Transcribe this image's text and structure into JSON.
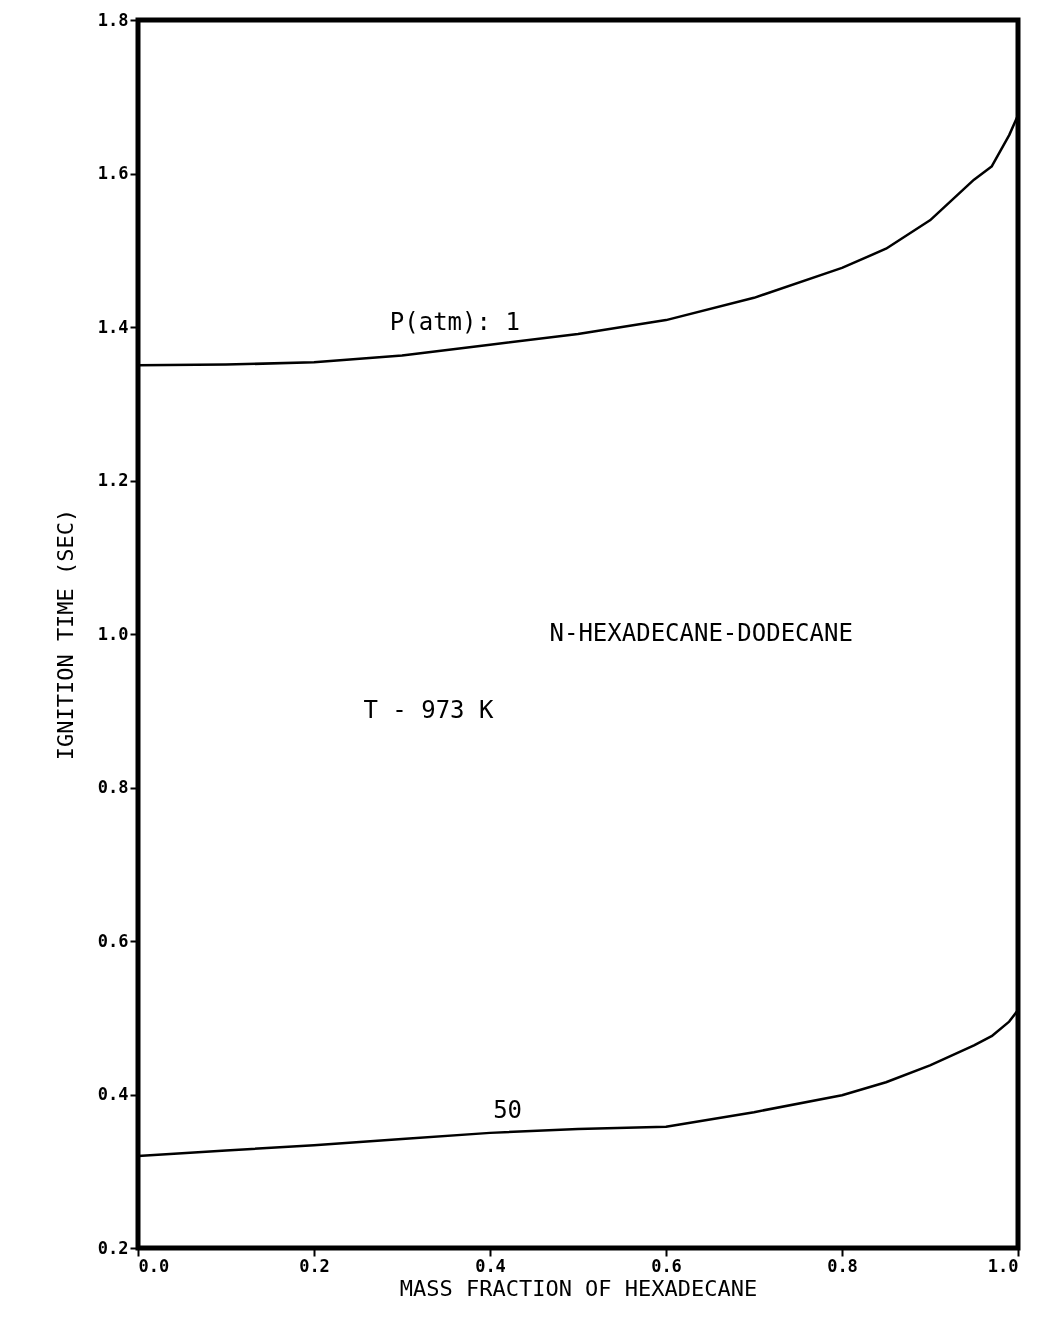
{
  "chart_data": {
    "type": "line",
    "xlabel": "MASS FRACTION OF HEXADECANE",
    "ylabel": "IGNITION TIME (SEC)",
    "annotations": [
      "N-HEXADECANE-DODECANE",
      "T - 973 K"
    ],
    "x": [
      0,
      0.1,
      0.2,
      0.3,
      0.4,
      0.5,
      0.6,
      0.7,
      0.8,
      0.85,
      0.9,
      0.95,
      0.97,
      0.99,
      1.0
    ],
    "series": [
      {
        "name": "P(atm): 1",
        "color": "#000000",
        "values": [
          1.35,
          1.351,
          1.354,
          1.363,
          1.377,
          1.391,
          1.409,
          1.438,
          1.477,
          1.502,
          1.539,
          1.592,
          1.609,
          1.65,
          1.676
        ]
      },
      {
        "name": "50",
        "color": "#000000",
        "values": [
          0.32,
          0.327,
          0.334,
          0.342,
          0.35,
          0.355,
          0.358,
          0.377,
          0.399,
          0.416,
          0.438,
          0.464,
          0.476,
          0.495,
          0.51
        ]
      }
    ],
    "xlim": [
      0,
      1
    ],
    "ylim": [
      0.2,
      1.8
    ],
    "xticks": [
      {
        "value": 0,
        "label": "0.0"
      },
      {
        "value": 0.2,
        "label": "0.2"
      },
      {
        "value": 0.4,
        "label": "0.4"
      },
      {
        "value": 0.6,
        "label": "0.6"
      },
      {
        "value": 0.8,
        "label": "0.8"
      },
      {
        "value": 1,
        "label": "1.0"
      }
    ],
    "yticks": [
      {
        "value": 0.2,
        "label": "0.2"
      },
      {
        "value": 0.4,
        "label": "0.4"
      },
      {
        "value": 0.6,
        "label": "0.6"
      },
      {
        "value": 0.8,
        "label": "0.8"
      },
      {
        "value": 1,
        "label": "1.0"
      },
      {
        "value": 1.2,
        "label": "1.2"
      },
      {
        "value": 1.4,
        "label": "1.4"
      },
      {
        "value": 1.6,
        "label": "1.6"
      },
      {
        "value": 1.8,
        "label": "1.8"
      }
    ],
    "grid": false,
    "legend": false,
    "marker": "none",
    "line_style": "solid"
  }
}
